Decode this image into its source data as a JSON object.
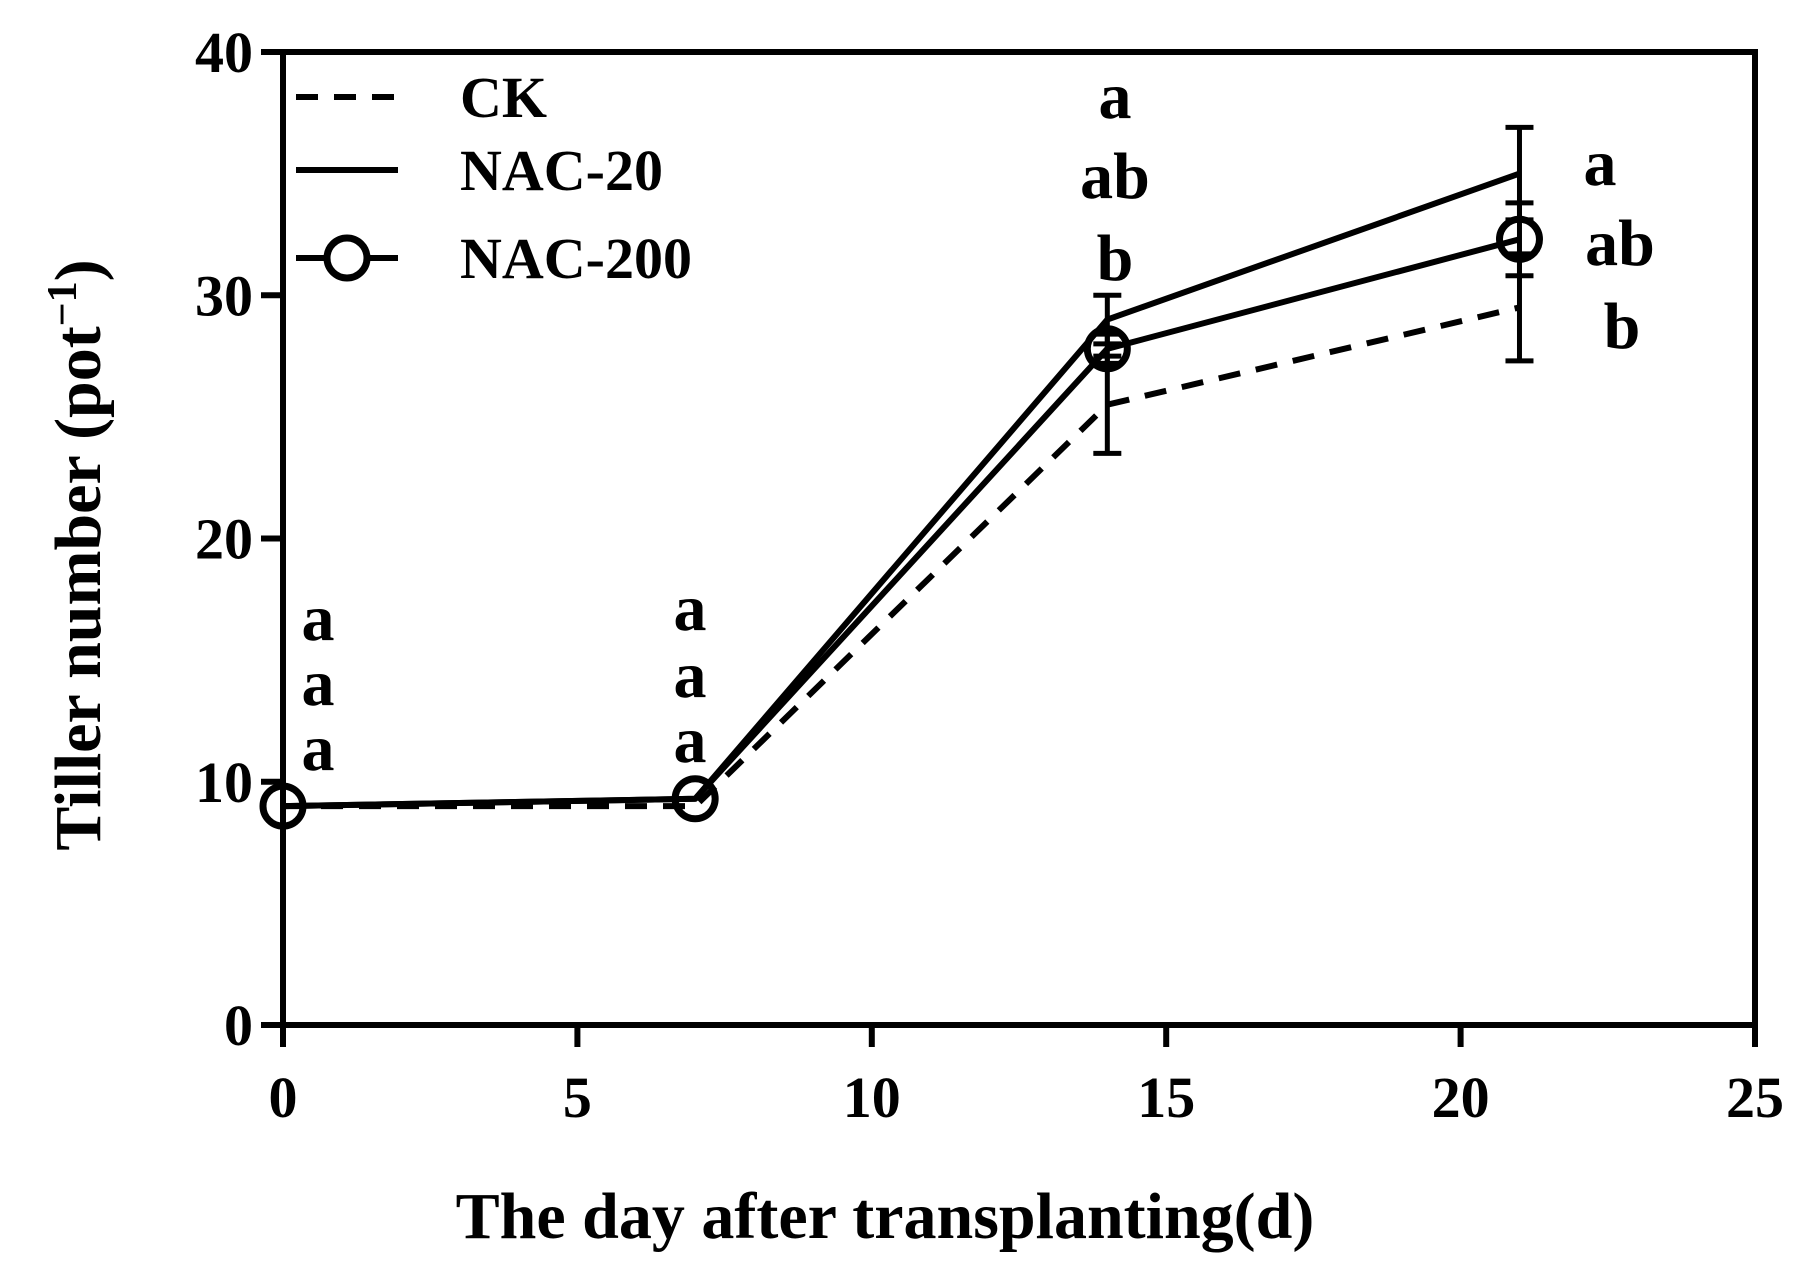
{
  "chart_data": {
    "type": "line",
    "title": "",
    "xlabel": "The day after transplanting(d)",
    "ylabel_main": "Tiller number (pot",
    "ylabel_sup": "−1",
    "ylabel_close": ")",
    "xlim": [
      0,
      25
    ],
    "ylim": [
      0,
      40
    ],
    "xticks": [
      "0",
      "5",
      "10",
      "15",
      "20",
      "25"
    ],
    "yticks": [
      "0",
      "10",
      "20",
      "30",
      "40"
    ],
    "grid": false,
    "legend_position": "top-left",
    "x": [
      0,
      7,
      14,
      21
    ],
    "series": [
      {
        "name": "CK",
        "style": "dashed",
        "marker": "none",
        "values": [
          9.0,
          9.0,
          25.5,
          29.5
        ],
        "errors": [
          0,
          0,
          2.0,
          2.2
        ]
      },
      {
        "name": "NAC-20",
        "style": "solid",
        "marker": "none",
        "values": [
          9.0,
          9.3,
          29.0,
          35.0
        ],
        "errors": [
          0,
          0,
          1.0,
          1.9
        ]
      },
      {
        "name": "NAC-200",
        "style": "solid",
        "marker": "circle",
        "values": [
          9.0,
          9.3,
          27.8,
          32.3
        ],
        "errors": [
          0,
          0,
          0.6,
          1.5
        ]
      }
    ],
    "significance_letters": [
      {
        "x": 0,
        "letters": [
          "a",
          "a",
          "a"
        ]
      },
      {
        "x": 7,
        "letters": [
          "a",
          "a",
          "a"
        ]
      },
      {
        "x": 14,
        "letters": [
          "a",
          "ab",
          "b"
        ]
      },
      {
        "x": 21,
        "letters": [
          "a",
          "ab",
          "b"
        ]
      }
    ]
  }
}
